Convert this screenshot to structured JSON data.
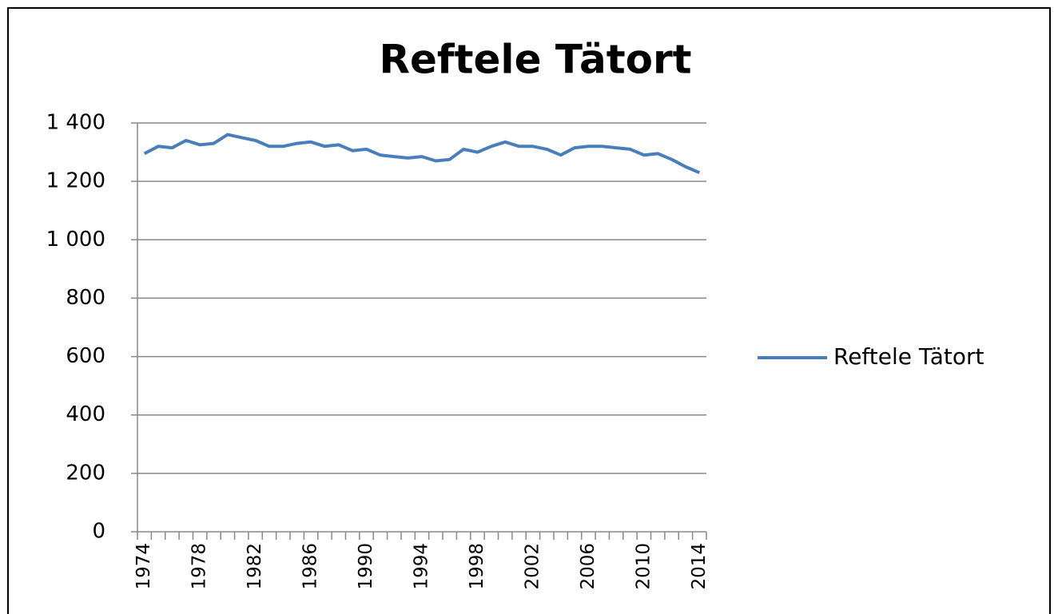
{
  "chart_data": {
    "type": "line",
    "title": "Reftele Tätort",
    "categories": [
      "1974",
      null,
      null,
      null,
      "1978",
      null,
      null,
      null,
      "1982",
      null,
      null,
      null,
      "1986",
      null,
      null,
      null,
      "1990",
      null,
      null,
      null,
      "1994",
      null,
      null,
      null,
      "1998",
      null,
      null,
      null,
      "2002",
      null,
      null,
      null,
      "2006",
      null,
      null,
      null,
      "2010",
      null,
      null,
      null,
      "2014"
    ],
    "series": [
      {
        "name": "Reftele Tätort",
        "color": "#4a7ebb",
        "values": [
          1295,
          1320,
          1315,
          1340,
          1325,
          1330,
          1360,
          1350,
          1340,
          1320,
          1320,
          1330,
          1335,
          1320,
          1325,
          1305,
          1310,
          1290,
          1285,
          1280,
          1285,
          1270,
          1275,
          1310,
          1300,
          1320,
          1335,
          1320,
          1320,
          1310,
          1290,
          1315,
          1320,
          1320,
          1315,
          1310,
          1290,
          1295,
          1275,
          1250,
          1230
        ]
      }
    ],
    "ylim": [
      0,
      1400
    ],
    "yticks": [
      0,
      200,
      400,
      600,
      800,
      {
        "value": 1000,
        "label": "1 000"
      },
      {
        "value": 1200,
        "label": "1 200"
      },
      {
        "value": 1400,
        "label": "1 400"
      }
    ],
    "grid": true,
    "legend": "right"
  }
}
